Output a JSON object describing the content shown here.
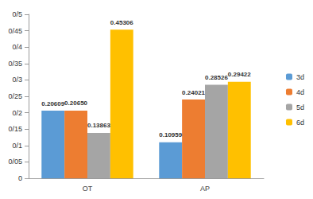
{
  "chart_data": {
    "type": "bar",
    "categories": [
      "OT",
      "AP"
    ],
    "series": [
      {
        "name": "3d",
        "color": "#5b9bd5",
        "values": [
          0.20609,
          0.10959
        ],
        "value_labels": [
          "0.20609",
          "0.10959"
        ]
      },
      {
        "name": "4d",
        "color": "#ed7d31",
        "values": [
          0.2065,
          0.24021
        ],
        "value_labels": [
          "0.20650",
          "0.24021"
        ]
      },
      {
        "name": "5d",
        "color": "#a5a5a5",
        "values": [
          0.13863,
          0.28526
        ],
        "value_labels": [
          "0.13863",
          "0.28526"
        ]
      },
      {
        "name": "6d",
        "color": "#ffc000",
        "values": [
          0.45306,
          0.29422
        ],
        "value_labels": [
          "0.45306",
          "0.29422"
        ]
      }
    ],
    "ylim": [
      0,
      0.5
    ],
    "yticks": [
      0,
      {
        "value": 0.05,
        "label": "0/05"
      },
      {
        "value": 0.1,
        "label": "0/1"
      },
      {
        "value": 0.15,
        "label": "0/15"
      },
      {
        "value": 0.2,
        "label": "0/2"
      },
      {
        "value": 0.25,
        "label": "0/25"
      },
      {
        "value": 0.3,
        "label": "0/3"
      },
      {
        "value": 0.35,
        "label": "0/35"
      },
      {
        "value": 0.4,
        "label": "0/4"
      },
      {
        "value": 0.45,
        "label": "0/45"
      },
      {
        "value": 0.5,
        "label": "0/5"
      }
    ],
    "grid": false,
    "legend": "right",
    "data_labels": true
  }
}
